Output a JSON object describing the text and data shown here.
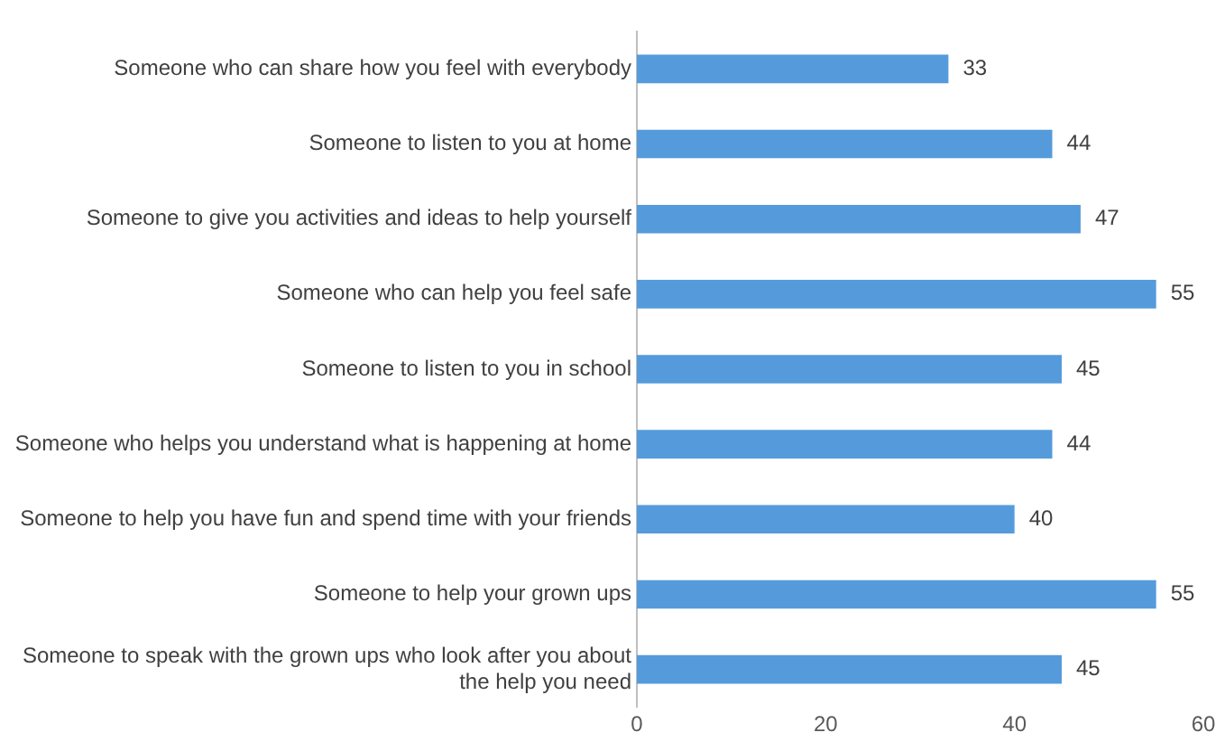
{
  "chart_data": {
    "type": "bar",
    "orientation": "horizontal",
    "categories": [
      "Someone who can share how you feel with everybody",
      "Someone to listen to you at home",
      "Someone to give you activities and ideas to help yourself",
      "Someone who can help you feel safe",
      "Someone to listen to you in school",
      "Someone who helps you understand what is happening at home",
      "Someone to help you have fun and spend time with your friends",
      "Someone to help your grown ups",
      "Someone to speak with the grown ups who look after you about the help you need"
    ],
    "values": [
      33,
      44,
      47,
      55,
      45,
      44,
      40,
      55,
      45
    ],
    "color": "#559bdc",
    "xlim": [
      0,
      60
    ],
    "xticks": [
      0,
      20,
      40,
      60
    ],
    "data_labels": true,
    "grid": false,
    "legend": false
  }
}
